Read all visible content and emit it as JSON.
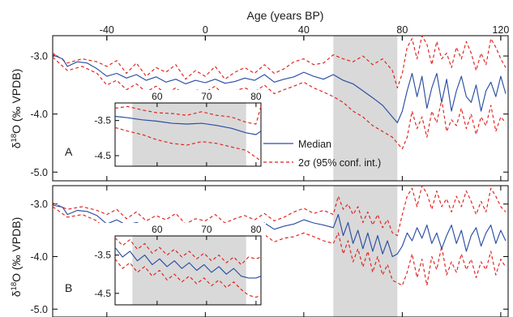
{
  "chart_data": {
    "type": "line",
    "top_axis": {
      "label": "Age (years BP)",
      "ticks": [
        "-40",
        "0",
        "40",
        "80",
        "120"
      ],
      "tick_values": [
        -40,
        0,
        40,
        80,
        120
      ],
      "range": [
        -62,
        123
      ]
    },
    "y_axis": {
      "label_prefix": "δ",
      "label_sup": "18",
      "label_suffix": "O (‰ VPDB)",
      "ticks": [
        "-3.0",
        "-4.0",
        "-5.0"
      ],
      "tick_values": [
        -3.0,
        -4.0,
        -5.0
      ],
      "range": [
        -5.15,
        -2.65
      ]
    },
    "shaded_region_age": [
      52,
      78
    ],
    "legend": {
      "median": "Median",
      "ci": "2σ (95% conf. int.)",
      "position": "center"
    },
    "colors": {
      "median": "#2a4ea3",
      "ci": "#e0201c",
      "shade": "#d9d9d9"
    },
    "panels": [
      {
        "letter": "A",
        "median": {
          "x": [
            -62,
            -58,
            -56,
            -52,
            -48,
            -44,
            -40,
            -36,
            -32,
            -28,
            -24,
            -20,
            -16,
            -12,
            -8,
            -4,
            0,
            4,
            8,
            12,
            16,
            20,
            24,
            28,
            32,
            36,
            40,
            44,
            48,
            52,
            56,
            60,
            64,
            68,
            72,
            76,
            78,
            80,
            82,
            84,
            86,
            88,
            90,
            92,
            94,
            96,
            98,
            100,
            102,
            104,
            106,
            108,
            110,
            112,
            114,
            116,
            118,
            120,
            122
          ],
          "y": [
            -2.98,
            -3.05,
            -3.18,
            -3.1,
            -3.12,
            -3.22,
            -3.35,
            -3.3,
            -3.38,
            -3.32,
            -3.42,
            -3.36,
            -3.45,
            -3.4,
            -3.48,
            -3.42,
            -3.46,
            -3.4,
            -3.47,
            -3.44,
            -3.38,
            -3.42,
            -3.32,
            -3.45,
            -3.4,
            -3.36,
            -3.28,
            -3.35,
            -3.4,
            -3.32,
            -3.42,
            -3.48,
            -3.6,
            -3.72,
            -3.85,
            -4.05,
            -4.15,
            -3.95,
            -3.6,
            -3.3,
            -3.7,
            -3.35,
            -3.9,
            -3.55,
            -3.3,
            -3.8,
            -3.4,
            -3.95,
            -3.6,
            -3.35,
            -3.7,
            -3.8,
            -3.5,
            -3.95,
            -3.6,
            -3.45,
            -3.7,
            -3.35,
            -3.65
          ]
        },
        "ci_upper": {
          "x": [
            -62,
            -56,
            -50,
            -44,
            -40,
            -36,
            -32,
            -28,
            -24,
            -20,
            -16,
            -12,
            -8,
            -4,
            0,
            4,
            8,
            12,
            16,
            20,
            24,
            28,
            32,
            36,
            40,
            44,
            48,
            52,
            56,
            60,
            64,
            68,
            72,
            76,
            78,
            80,
            82,
            84,
            86,
            88,
            90,
            92,
            94,
            96,
            98,
            100,
            102,
            104,
            106,
            108,
            110,
            112,
            114,
            116,
            118,
            120,
            122
          ],
          "y": [
            -2.95,
            -3.12,
            -3.05,
            -3.1,
            -3.18,
            -3.08,
            -3.3,
            -3.12,
            -3.35,
            -3.2,
            -3.28,
            -3.15,
            -3.4,
            -3.25,
            -3.35,
            -3.18,
            -3.4,
            -3.28,
            -3.2,
            -3.3,
            -3.15,
            -3.3,
            -3.22,
            -3.1,
            -3.05,
            -3.15,
            -3.12,
            -2.98,
            -3.05,
            -3.1,
            -3.0,
            -3.15,
            -3.05,
            -3.25,
            -3.55,
            -3.3,
            -2.85,
            -2.7,
            -3.05,
            -2.65,
            -2.8,
            -3.15,
            -2.75,
            -3.05,
            -2.95,
            -3.2,
            -2.85,
            -3.05,
            -2.75,
            -2.95,
            -3.25,
            -2.95,
            -3.15,
            -2.7,
            -2.85,
            -3.05,
            -3.2
          ]
        },
        "ci_lower": {
          "x": [
            -62,
            -56,
            -50,
            -44,
            -40,
            -36,
            -32,
            -28,
            -24,
            -20,
            -16,
            -12,
            -8,
            -4,
            0,
            4,
            8,
            12,
            16,
            20,
            24,
            28,
            32,
            36,
            40,
            44,
            48,
            52,
            56,
            60,
            64,
            68,
            72,
            76,
            78,
            80,
            82,
            84,
            86,
            88,
            90,
            92,
            94,
            96,
            98,
            100,
            102,
            104,
            106,
            108,
            110,
            112,
            114,
            116,
            118,
            120,
            122
          ],
          "y": [
            -3.02,
            -3.25,
            -3.18,
            -3.3,
            -3.5,
            -3.42,
            -3.58,
            -3.48,
            -3.62,
            -3.52,
            -3.65,
            -3.55,
            -3.68,
            -3.58,
            -3.62,
            -3.52,
            -3.7,
            -3.6,
            -3.55,
            -3.62,
            -3.5,
            -3.65,
            -3.58,
            -3.52,
            -3.45,
            -3.55,
            -3.62,
            -3.7,
            -3.8,
            -3.95,
            -4.05,
            -4.2,
            -4.3,
            -4.4,
            -4.5,
            -4.6,
            -4.4,
            -3.95,
            -4.25,
            -4.05,
            -4.4,
            -3.95,
            -4.15,
            -3.75,
            -4.3,
            -4.1,
            -4.2,
            -3.9,
            -4.25,
            -4.0,
            -4.35,
            -4.05,
            -4.2,
            -3.85,
            -4.3,
            -4.05,
            -4.15
          ]
        },
        "inset": {
          "x_ticks": [
            "60",
            "70",
            "80"
          ],
          "x_tick_values": [
            60,
            70,
            80
          ],
          "x_range": [
            51.5,
            81
          ],
          "y_ticks": [
            "-3.5",
            "-4.5"
          ],
          "y_tick_values": [
            -3.5,
            -4.5
          ],
          "y_range": [
            -4.8,
            -3.0
          ],
          "shade": [
            55,
            78
          ],
          "median": {
            "x": [
              51.5,
              54,
              57,
              60,
              63,
              66,
              69,
              72,
              75,
              78,
              80,
              81
            ],
            "y": [
              -3.38,
              -3.42,
              -3.48,
              -3.52,
              -3.58,
              -3.6,
              -3.58,
              -3.64,
              -3.72,
              -3.85,
              -3.9,
              -3.8
            ]
          },
          "ci_upper": {
            "x": [
              51.5,
              54,
              57,
              60,
              63,
              66,
              69,
              72,
              75,
              78,
              80,
              81
            ],
            "y": [
              -3.15,
              -3.1,
              -3.2,
              -3.28,
              -3.3,
              -3.35,
              -3.25,
              -3.35,
              -3.4,
              -3.55,
              -3.6,
              -3.1
            ]
          },
          "ci_lower": {
            "x": [
              51.5,
              54,
              57,
              60,
              63,
              66,
              69,
              72,
              75,
              78,
              80,
              81
            ],
            "y": [
              -3.7,
              -3.8,
              -3.9,
              -4.05,
              -4.15,
              -4.2,
              -4.1,
              -4.15,
              -4.25,
              -4.35,
              -4.55,
              -4.65
            ]
          }
        }
      },
      {
        "letter": "B",
        "median": {
          "x": [
            -62,
            -58,
            -56,
            -52,
            -48,
            -44,
            -40,
            -36,
            -32,
            -28,
            -24,
            -20,
            -16,
            -12,
            -8,
            -4,
            0,
            4,
            8,
            12,
            16,
            20,
            24,
            28,
            32,
            36,
            40,
            44,
            48,
            52,
            54,
            56,
            58,
            60,
            62,
            64,
            66,
            68,
            70,
            72,
            74,
            76,
            78,
            80,
            82,
            84,
            86,
            88,
            90,
            92,
            94,
            96,
            98,
            100,
            102,
            104,
            106,
            108,
            110,
            112,
            114,
            116,
            118,
            120,
            122
          ],
          "y": [
            -3.02,
            -3.06,
            -3.2,
            -3.12,
            -3.14,
            -3.22,
            -3.38,
            -3.3,
            -3.4,
            -3.35,
            -3.42,
            -3.38,
            -3.48,
            -3.42,
            -3.5,
            -3.45,
            -3.48,
            -3.42,
            -3.5,
            -3.46,
            -3.4,
            -3.44,
            -3.36,
            -3.48,
            -3.42,
            -3.38,
            -3.3,
            -3.36,
            -3.4,
            -3.45,
            -3.2,
            -3.6,
            -3.35,
            -3.75,
            -3.5,
            -3.85,
            -3.55,
            -3.9,
            -3.6,
            -3.95,
            -3.7,
            -4.0,
            -3.95,
            -3.8,
            -3.55,
            -3.7,
            -3.45,
            -3.65,
            -3.4,
            -3.75,
            -3.55,
            -3.85,
            -3.6,
            -3.4,
            -3.75,
            -3.5,
            -3.9,
            -3.6,
            -3.45,
            -3.8,
            -3.55,
            -3.4,
            -3.75,
            -3.5,
            -3.7
          ]
        },
        "ci_upper": {
          "x": [
            -62,
            -56,
            -50,
            -44,
            -40,
            -36,
            -32,
            -28,
            -24,
            -20,
            -16,
            -12,
            -8,
            -4,
            0,
            4,
            8,
            12,
            16,
            20,
            24,
            28,
            32,
            36,
            40,
            44,
            48,
            52,
            54,
            56,
            58,
            60,
            62,
            64,
            66,
            68,
            70,
            72,
            74,
            76,
            78,
            80,
            82,
            84,
            86,
            88,
            90,
            92,
            94,
            96,
            98,
            100,
            102,
            104,
            106,
            108,
            110,
            112,
            114,
            116,
            118,
            120,
            122
          ],
          "y": [
            -2.98,
            -3.1,
            -3.05,
            -3.12,
            -3.2,
            -3.1,
            -3.28,
            -3.15,
            -3.32,
            -3.22,
            -3.3,
            -3.18,
            -3.38,
            -3.28,
            -3.32,
            -3.2,
            -3.36,
            -3.28,
            -3.22,
            -3.3,
            -3.18,
            -3.32,
            -3.25,
            -3.15,
            -3.08,
            -3.18,
            -3.12,
            -3.2,
            -2.85,
            -3.1,
            -3.0,
            -3.2,
            -3.05,
            -3.35,
            -3.15,
            -3.4,
            -3.2,
            -3.45,
            -3.3,
            -3.55,
            -3.6,
            -3.2,
            -2.85,
            -2.7,
            -3.05,
            -2.65,
            -2.8,
            -3.1,
            -2.75,
            -3.05,
            -2.9,
            -3.15,
            -2.85,
            -3.05,
            -2.75,
            -2.95,
            -3.2,
            -2.95,
            -3.15,
            -2.7,
            -2.85,
            -3.05,
            -3.15
          ]
        },
        "ci_lower": {
          "x": [
            -62,
            -56,
            -50,
            -44,
            -40,
            -36,
            -32,
            -28,
            -24,
            -20,
            -16,
            -12,
            -8,
            -4,
            0,
            4,
            8,
            12,
            16,
            20,
            24,
            28,
            32,
            36,
            40,
            44,
            48,
            52,
            54,
            56,
            58,
            60,
            62,
            64,
            66,
            68,
            70,
            72,
            74,
            76,
            78,
            80,
            82,
            84,
            86,
            88,
            90,
            92,
            94,
            96,
            98,
            100,
            102,
            104,
            106,
            108,
            110,
            112,
            114,
            116,
            118,
            120,
            122
          ],
          "y": [
            -3.05,
            -3.25,
            -3.2,
            -3.32,
            -3.52,
            -3.45,
            -3.62,
            -3.5,
            -3.65,
            -3.55,
            -3.68,
            -3.58,
            -3.72,
            -3.62,
            -3.7,
            -3.58,
            -3.75,
            -3.65,
            -3.62,
            -3.7,
            -3.58,
            -3.72,
            -3.65,
            -3.62,
            -3.55,
            -3.62,
            -3.7,
            -3.75,
            -3.55,
            -3.95,
            -3.7,
            -4.1,
            -3.85,
            -4.2,
            -3.9,
            -4.3,
            -4.0,
            -4.35,
            -4.15,
            -4.45,
            -4.5,
            -4.55,
            -4.3,
            -3.95,
            -4.4,
            -4.05,
            -4.55,
            -4.0,
            -4.25,
            -3.8,
            -4.35,
            -4.1,
            -4.3,
            -3.95,
            -4.25,
            -4.05,
            -4.4,
            -4.1,
            -4.25,
            -3.9,
            -4.35,
            -4.05,
            -4.2
          ]
        },
        "inset": {
          "x_ticks": [
            "60",
            "70",
            "80"
          ],
          "x_tick_values": [
            60,
            70,
            80
          ],
          "x_range": [
            51.5,
            81
          ],
          "y_ticks": [
            "-3.5",
            "-4.5"
          ],
          "y_tick_values": [
            -3.5,
            -4.5
          ],
          "y_range": [
            -4.8,
            -3.0
          ],
          "shade": [
            55,
            78
          ],
          "median": {
            "x": [
              51.5,
              53,
              54.5,
              56,
              57.5,
              59,
              60.5,
              62,
              63.5,
              65,
              66.5,
              68,
              69.5,
              71,
              72.5,
              74,
              75.5,
              77,
              78.5,
              80,
              81
            ],
            "y": [
              -3.3,
              -3.55,
              -3.4,
              -3.65,
              -3.5,
              -3.75,
              -3.6,
              -3.8,
              -3.65,
              -3.85,
              -3.7,
              -3.9,
              -3.75,
              -3.95,
              -3.8,
              -4.0,
              -3.85,
              -4.05,
              -4.1,
              -4.1,
              -4.05
            ]
          },
          "ci_upper": {
            "x": [
              51.5,
              53,
              54.5,
              56,
              57.5,
              59,
              60.5,
              62,
              63.5,
              65,
              66.5,
              68,
              69.5,
              71,
              72.5,
              74,
              75.5,
              77,
              78.5,
              80,
              81
            ],
            "y": [
              -3.05,
              -3.25,
              -3.1,
              -3.35,
              -3.2,
              -3.45,
              -3.3,
              -3.5,
              -3.35,
              -3.55,
              -3.4,
              -3.6,
              -3.45,
              -3.65,
              -3.5,
              -3.7,
              -3.55,
              -3.75,
              -3.55,
              -3.6,
              -3.55
            ]
          },
          "ci_lower": {
            "x": [
              51.5,
              53,
              54.5,
              56,
              57.5,
              59,
              60.5,
              62,
              63.5,
              65,
              66.5,
              68,
              69.5,
              71,
              72.5,
              74,
              75.5,
              77,
              78.5,
              80,
              81
            ],
            "y": [
              -3.6,
              -3.85,
              -3.7,
              -3.95,
              -3.8,
              -4.05,
              -3.9,
              -4.15,
              -4.0,
              -4.2,
              -4.05,
              -4.25,
              -4.1,
              -4.3,
              -4.15,
              -4.35,
              -4.2,
              -4.4,
              -4.55,
              -4.6,
              -4.55
            ]
          }
        }
      }
    ]
  }
}
